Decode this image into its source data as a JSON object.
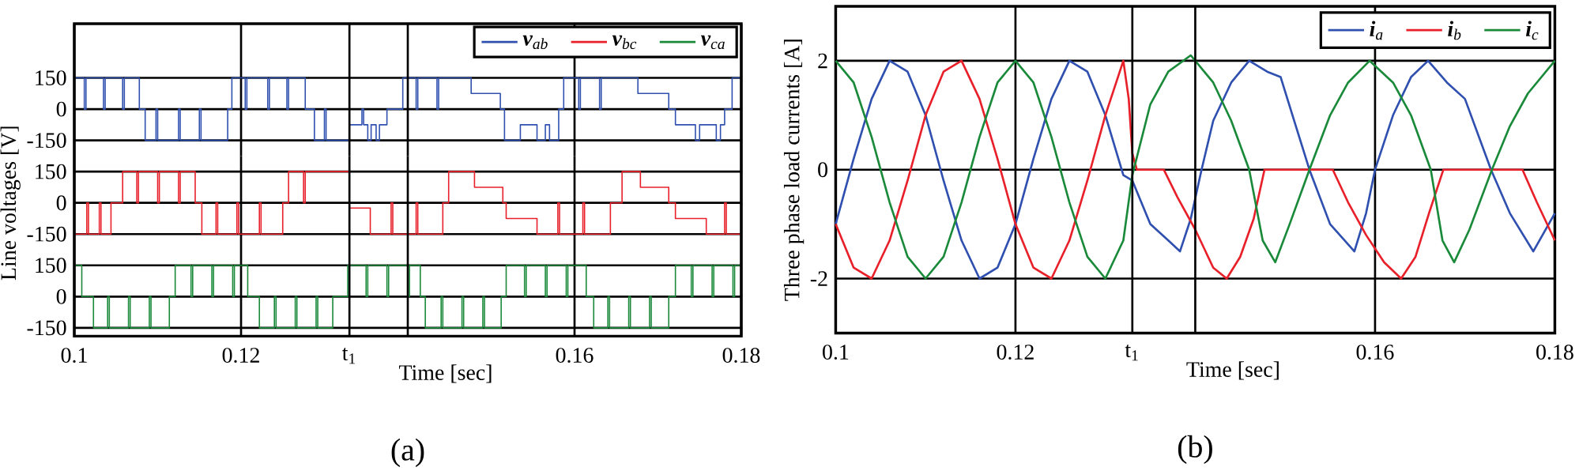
{
  "chart_data": [
    {
      "type": "step",
      "xlim": [
        0.1,
        0.18
      ],
      "xticks": [
        0.1,
        0.12,
        0.16,
        0.18
      ],
      "ref_lines": [
        {
          "axis": "x",
          "value": 0.133
        },
        {
          "axis": "x",
          "value": 0.14
        }
      ],
      "ylim": [
        -225,
        410
      ],
      "yticks": [
        -150,
        0,
        150
      ],
      "grid": true,
      "tick_labels": "y",
      "legend": "top right",
      "series": [
        {
          "name": "**v**$_{ab}$",
          "color": "#3050b0",
          "x": [
            0.1,
            0.1012,
            0.1014,
            0.1035,
            0.1037,
            0.1058,
            0.106,
            0.1078,
            0.1085,
            0.1098,
            0.11,
            0.1125,
            0.1127,
            0.115,
            0.1152,
            0.1184,
            0.1189,
            0.1205,
            0.1207,
            0.1232,
            0.1234,
            0.1255,
            0.1257,
            0.1277,
            0.1288,
            0.13,
            0.1302,
            0.133,
            0.1345,
            0.1347,
            0.1352,
            0.1356,
            0.1362,
            0.1366,
            0.1375,
            0.1394,
            0.141,
            0.1412,
            0.1435,
            0.1437,
            0.1476,
            0.1511,
            0.1516,
            0.1535,
            0.1555,
            0.1565,
            0.157,
            0.1581,
            0.1587,
            0.1605,
            0.1607,
            0.163,
            0.1632,
            0.1676,
            0.1713,
            0.1721,
            0.1745,
            0.175,
            0.177,
            0.1775,
            0.178,
            0.1789,
            0.18
          ],
          "values": [
            150,
            0,
            150,
            0,
            150,
            0,
            150,
            0,
            -150,
            0,
            -150,
            0,
            -150,
            0,
            -150,
            0,
            150,
            0,
            150,
            0,
            150,
            0,
            150,
            0,
            -150,
            0,
            -150,
            -75,
            0,
            -75,
            -150,
            -75,
            -150,
            -75,
            0,
            150,
            0,
            150,
            0,
            150,
            75,
            0,
            -150,
            -75,
            -150,
            -75,
            -150,
            0,
            150,
            0,
            150,
            0,
            150,
            75,
            0,
            -75,
            -150,
            -75,
            -150,
            -75,
            0,
            150,
            150
          ]
        }
      ]
    },
    {
      "type": "step",
      "xlim": [
        0.1,
        0.18
      ],
      "xticks": [
        0.1,
        0.12,
        0.16,
        0.18
      ],
      "ref_lines": [
        {
          "axis": "x",
          "value": 0.133
        },
        {
          "axis": "x",
          "value": 0.14
        }
      ],
      "ylim": [
        -225,
        225
      ],
      "yticks": [
        -150,
        0,
        150
      ],
      "grid": true,
      "tick_labels": "y",
      "ylabel": "Line voltages [V]",
      "series": [
        {
          "name": "**v**$_{bc}$",
          "color": "#e8202a",
          "x": [
            0.1,
            0.1015,
            0.1017,
            0.103,
            0.1032,
            0.1044,
            0.1058,
            0.1075,
            0.1077,
            0.11,
            0.1102,
            0.1125,
            0.1127,
            0.1145,
            0.1153,
            0.117,
            0.1172,
            0.1195,
            0.1197,
            0.1222,
            0.1224,
            0.125,
            0.1257,
            0.1275,
            0.1277,
            0.133,
            0.1355,
            0.138,
            0.1382,
            0.141,
            0.1412,
            0.1442,
            0.1449,
            0.148,
            0.1514,
            0.1518,
            0.1555,
            0.158,
            0.1582,
            0.161,
            0.1612,
            0.1643,
            0.1657,
            0.1679,
            0.1713,
            0.1721,
            0.1758,
            0.178,
            0.1782,
            0.18
          ],
          "values": [
            -150,
            0,
            -150,
            0,
            -150,
            0,
            150,
            0,
            150,
            0,
            150,
            0,
            150,
            0,
            -150,
            0,
            -150,
            0,
            -150,
            0,
            -150,
            0,
            150,
            0,
            150,
            -25,
            -150,
            0,
            -150,
            0,
            -150,
            0,
            150,
            75,
            0,
            -75,
            -150,
            0,
            -150,
            0,
            -150,
            0,
            150,
            75,
            0,
            -75,
            -150,
            0,
            -150,
            -150
          ]
        }
      ]
    },
    {
      "type": "step",
      "xlim": [
        0.1,
        0.18
      ],
      "xticks": [
        0.1,
        0.12,
        0.16,
        0.18
      ],
      "ref_lines": [
        {
          "axis": "x",
          "value": 0.133,
          "label": "t$_{1}$"
        },
        {
          "axis": "x",
          "value": 0.14
        }
      ],
      "ylim": [
        -190,
        225
      ],
      "yticks": [
        -150,
        0,
        150
      ],
      "grid": true,
      "xlabel": "Time [sec]",
      "annotations": [
        "(a)"
      ],
      "series": [
        {
          "name": "**v**$_{ca}$",
          "color": "#1a8a3a",
          "x": [
            0.1,
            0.1009,
            0.1023,
            0.104,
            0.1042,
            0.1065,
            0.1067,
            0.109,
            0.1092,
            0.1114,
            0.1121,
            0.114,
            0.1142,
            0.1165,
            0.1167,
            0.119,
            0.1192,
            0.1208,
            0.1222,
            0.124,
            0.1242,
            0.1265,
            0.1267,
            0.129,
            0.1292,
            0.131,
            0.1328,
            0.135,
            0.1352,
            0.1375,
            0.1377,
            0.14,
            0.1402,
            0.1415,
            0.1421,
            0.144,
            0.1442,
            0.1465,
            0.1467,
            0.149,
            0.1492,
            0.1512,
            0.1518,
            0.154,
            0.1542,
            0.1565,
            0.1567,
            0.159,
            0.1592,
            0.1614,
            0.1623,
            0.164,
            0.1642,
            0.1665,
            0.1667,
            0.169,
            0.1692,
            0.1713,
            0.1721,
            0.174,
            0.1742,
            0.1765,
            0.1767,
            0.179,
            0.1792,
            0.18
          ],
          "values": [
            150,
            0,
            -150,
            0,
            -150,
            0,
            -150,
            0,
            -150,
            0,
            150,
            0,
            150,
            0,
            150,
            0,
            150,
            0,
            -150,
            0,
            -150,
            0,
            -150,
            0,
            -150,
            0,
            150,
            0,
            150,
            0,
            150,
            0,
            150,
            0,
            -150,
            0,
            -150,
            0,
            -150,
            0,
            -150,
            0,
            150,
            0,
            150,
            0,
            150,
            0,
            150,
            0,
            -150,
            0,
            -150,
            0,
            -150,
            0,
            -150,
            0,
            150,
            0,
            150,
            0,
            150,
            0,
            150,
            150
          ]
        }
      ]
    },
    {
      "type": "line",
      "xlim": [
        0.1,
        0.18
      ],
      "xticks": [
        0.1,
        0.12,
        0.16,
        0.18
      ],
      "ref_lines": [
        {
          "axis": "x",
          "value": 0.133,
          "label": "t$_{1}$"
        },
        {
          "axis": "x",
          "value": 0.14
        }
      ],
      "ylim": [
        -3,
        3
      ],
      "yticks": [
        -2,
        0,
        2
      ],
      "grid": true,
      "legend": "top right",
      "xlabel": "Time [sec]",
      "ylabel": "Three phase load currents [A]",
      "annotations": [
        "(b)"
      ],
      "series": [
        {
          "name": "**i**$_{a}$",
          "color": "#3050b0",
          "x": [
            0.1,
            0.102,
            0.104,
            0.106,
            0.108,
            0.11,
            0.112,
            0.114,
            0.116,
            0.118,
            0.12,
            0.122,
            0.124,
            0.126,
            0.128,
            0.13,
            0.132,
            0.133,
            0.135,
            0.137,
            0.1383,
            0.1395,
            0.1407,
            0.142,
            0.144,
            0.146,
            0.148,
            0.1495,
            0.151,
            0.1527,
            0.155,
            0.1577,
            0.159,
            0.16,
            0.162,
            0.164,
            0.1659,
            0.168,
            0.17,
            0.1729,
            0.175,
            0.1776,
            0.18
          ],
          "values": [
            -1.0,
            0.2,
            1.3,
            2.0,
            1.8,
            1.0,
            -0.2,
            -1.3,
            -2.0,
            -1.8,
            -1.0,
            0.2,
            1.3,
            2.0,
            1.8,
            1.0,
            -0.1,
            -0.2,
            -1.0,
            -1.3,
            -1.5,
            -0.9,
            0,
            0.9,
            1.6,
            2.0,
            1.8,
            1.7,
            0.9,
            0,
            -1.0,
            -1.5,
            -0.8,
            0,
            1.0,
            1.7,
            2.0,
            1.6,
            1.3,
            0,
            -0.8,
            -1.5,
            -0.8
          ]
        },
        {
          "name": "**i**$_{b}$",
          "color": "#e8202a",
          "x": [
            0.1,
            0.102,
            0.104,
            0.106,
            0.108,
            0.11,
            0.112,
            0.114,
            0.116,
            0.118,
            0.12,
            0.122,
            0.124,
            0.126,
            0.128,
            0.13,
            0.132,
            0.1326,
            0.133,
            0.1335,
            0.1365,
            0.138,
            0.14,
            0.142,
            0.1435,
            0.145,
            0.1465,
            0.1477,
            0.1553,
            0.157,
            0.159,
            0.161,
            0.1629,
            0.1645,
            0.166,
            0.1676,
            0.1764,
            0.178,
            0.18
          ],
          "values": [
            -1.0,
            -1.8,
            -2.0,
            -1.3,
            -0.2,
            1.0,
            1.8,
            2.0,
            1.3,
            0.2,
            -1.0,
            -1.8,
            -2.0,
            -1.3,
            -0.2,
            1.0,
            2.0,
            1.3,
            0.3,
            0,
            0,
            -0.5,
            -1.1,
            -1.8,
            -2.0,
            -1.6,
            -0.9,
            0,
            0,
            -0.6,
            -1.2,
            -1.7,
            -2.0,
            -1.6,
            -0.8,
            0,
            0,
            -0.6,
            -1.3
          ]
        },
        {
          "name": "**i**$_{c}$",
          "color": "#1a8a3a",
          "x": [
            0.1,
            0.102,
            0.104,
            0.106,
            0.108,
            0.11,
            0.112,
            0.114,
            0.116,
            0.118,
            0.12,
            0.122,
            0.124,
            0.126,
            0.128,
            0.13,
            0.132,
            0.133,
            0.135,
            0.137,
            0.1395,
            0.142,
            0.144,
            0.146,
            0.1475,
            0.1489,
            0.1505,
            0.1527,
            0.155,
            0.157,
            0.1594,
            0.162,
            0.164,
            0.1662,
            0.1675,
            0.1688,
            0.1705,
            0.173,
            0.175,
            0.177,
            0.18
          ],
          "values": [
            2.0,
            1.6,
            0.6,
            -0.6,
            -1.6,
            -2.0,
            -1.6,
            -0.6,
            0.6,
            1.6,
            2.0,
            1.6,
            0.6,
            -0.6,
            -1.6,
            -2.0,
            -1.3,
            -0.1,
            1.2,
            1.8,
            2.1,
            1.6,
            0.9,
            0,
            -1.3,
            -1.7,
            -1.0,
            0,
            1.0,
            1.6,
            2.0,
            1.6,
            1.0,
            0,
            -1.3,
            -1.7,
            -1.1,
            0,
            0.8,
            1.4,
            2.0
          ]
        }
      ]
    }
  ]
}
